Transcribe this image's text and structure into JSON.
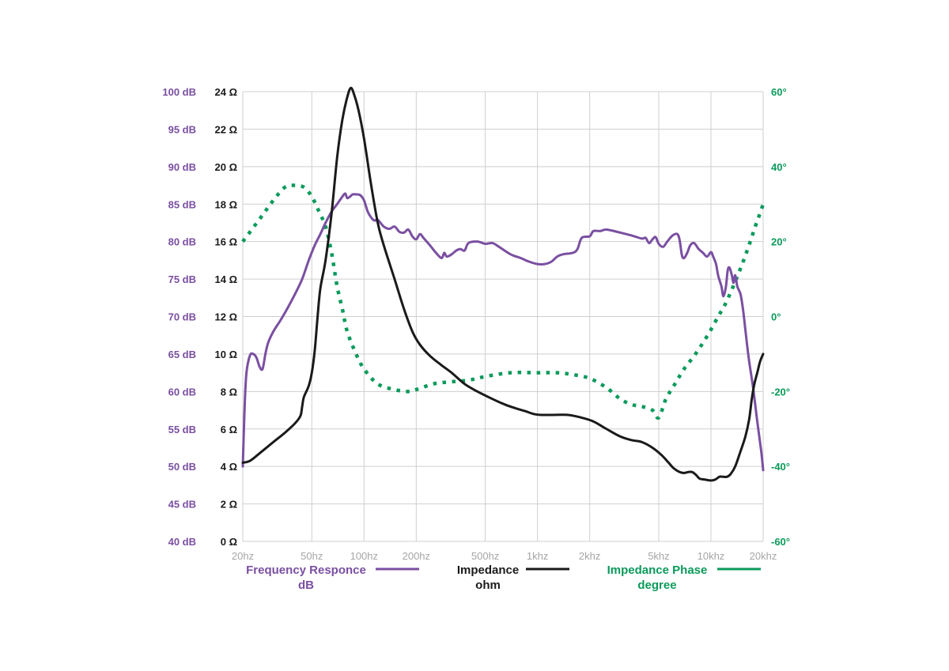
{
  "colors": {
    "frequency": "#7a4fa1",
    "impedance": "#1a1a1a",
    "phase": "#0a9a5a",
    "grid": "#cfcfcf",
    "xtick": "#a6a6a6"
  },
  "axes": {
    "db_ticks": [
      "40 dB",
      "45 dB",
      "50 dB",
      "55 dB",
      "60 dB",
      "65 dB",
      "70 dB",
      "75 dB",
      "80 dB",
      "85 dB",
      "90 dB",
      "95 dB",
      "100 dB"
    ],
    "ohm_ticks": [
      "0 Ω",
      "2 Ω",
      "4 Ω",
      "6 Ω",
      "8 Ω",
      "10 Ω",
      "12 Ω",
      "14 Ω",
      "16 Ω",
      "18 Ω",
      "20 Ω",
      "22 Ω",
      "24 Ω"
    ],
    "phase_ticks": [
      "-60°",
      "-40°",
      "-20°",
      "0°",
      "20°",
      "40°",
      "60°"
    ],
    "x_ticks": [
      "20hz",
      "50hz",
      "100hz",
      "200hz",
      "500hz",
      "1khz",
      "2khz",
      "5khz",
      "10khz",
      "20khz"
    ]
  },
  "legend": {
    "frequency_line1": "Frequency Responce",
    "frequency_line2": "dB",
    "impedance_line1": "Impedance",
    "impedance_line2": "ohm",
    "phase_line1": "Impedance Phase",
    "phase_line2": "degree"
  },
  "chart_data": {
    "type": "line",
    "x_scale": "log",
    "xlim": [
      20,
      20000
    ],
    "ylim_db": [
      40,
      100
    ],
    "ylim_ohm": [
      0,
      24
    ],
    "ylim_phase": [
      -60,
      60
    ],
    "grid": true,
    "legend_position": "bottom",
    "series": [
      {
        "name": "Frequency Responce",
        "axis": "db",
        "style": "solid",
        "points": [
          [
            20,
            50
          ],
          [
            20.5,
            58
          ],
          [
            21,
            62.5
          ],
          [
            22,
            64.8
          ],
          [
            23,
            65
          ],
          [
            24,
            64.5
          ],
          [
            25,
            63.3
          ],
          [
            26,
            63
          ],
          [
            27,
            65
          ],
          [
            28,
            66.5
          ],
          [
            30,
            68
          ],
          [
            33,
            69.5
          ],
          [
            36,
            71
          ],
          [
            40,
            73
          ],
          [
            44,
            75
          ],
          [
            48,
            77.5
          ],
          [
            52,
            79.5
          ],
          [
            56,
            81
          ],
          [
            60,
            82.5
          ],
          [
            65,
            84
          ],
          [
            70,
            85
          ],
          [
            75,
            86
          ],
          [
            78,
            86.4
          ],
          [
            80,
            85.8
          ],
          [
            83,
            86
          ],
          [
            86,
            86.3
          ],
          [
            90,
            86.3
          ],
          [
            95,
            86.2
          ],
          [
            100,
            85.5
          ],
          [
            105,
            84
          ],
          [
            110,
            83.2
          ],
          [
            115,
            82.8
          ],
          [
            120,
            82.9
          ],
          [
            130,
            82
          ],
          [
            140,
            81.7
          ],
          [
            150,
            82
          ],
          [
            160,
            81.3
          ],
          [
            170,
            81.2
          ],
          [
            180,
            81.6
          ],
          [
            190,
            80.7
          ],
          [
            200,
            80.3
          ],
          [
            210,
            81
          ],
          [
            220,
            80.5
          ],
          [
            240,
            79.5
          ],
          [
            260,
            78.5
          ],
          [
            280,
            77.8
          ],
          [
            290,
            78.5
          ],
          [
            300,
            78
          ],
          [
            320,
            78.3
          ],
          [
            340,
            78.8
          ],
          [
            360,
            79
          ],
          [
            380,
            78.8
          ],
          [
            400,
            79.8
          ],
          [
            450,
            80
          ],
          [
            500,
            79.7
          ],
          [
            550,
            79.8
          ],
          [
            600,
            79.3
          ],
          [
            700,
            78.3
          ],
          [
            800,
            77.8
          ],
          [
            900,
            77.3
          ],
          [
            1000,
            77
          ],
          [
            1100,
            77
          ],
          [
            1200,
            77.3
          ],
          [
            1300,
            78
          ],
          [
            1400,
            78.3
          ],
          [
            1600,
            78.5
          ],
          [
            1700,
            79
          ],
          [
            1800,
            80.5
          ],
          [
            2000,
            80.7
          ],
          [
            2100,
            81.4
          ],
          [
            2300,
            81.4
          ],
          [
            2500,
            81.6
          ],
          [
            3000,
            81.2
          ],
          [
            3500,
            80.8
          ],
          [
            4000,
            80.4
          ],
          [
            4200,
            80.5
          ],
          [
            4400,
            79.8
          ],
          [
            4600,
            80.3
          ],
          [
            4800,
            80.6
          ],
          [
            5000,
            79.7
          ],
          [
            5300,
            79.3
          ],
          [
            5600,
            80
          ],
          [
            6000,
            80.8
          ],
          [
            6400,
            81
          ],
          [
            6600,
            80.2
          ],
          [
            6800,
            78.2
          ],
          [
            7000,
            77.8
          ],
          [
            7300,
            78.5
          ],
          [
            7600,
            79.5
          ],
          [
            8000,
            79.8
          ],
          [
            8500,
            79
          ],
          [
            9000,
            78.5
          ],
          [
            9500,
            78
          ],
          [
            10000,
            78.6
          ],
          [
            10300,
            78
          ],
          [
            10700,
            77
          ],
          [
            11000,
            75.5
          ],
          [
            11500,
            74
          ],
          [
            11800,
            72.7
          ],
          [
            12200,
            74
          ],
          [
            12500,
            76.2
          ],
          [
            12800,
            76.5
          ],
          [
            13200,
            75.5
          ],
          [
            13500,
            74.5
          ],
          [
            13800,
            75.5
          ],
          [
            14200,
            74
          ],
          [
            14800,
            73
          ],
          [
            15300,
            71
          ],
          [
            15800,
            68.2
          ],
          [
            16500,
            64.5
          ],
          [
            17500,
            60.5
          ],
          [
            18500,
            56
          ],
          [
            19500,
            52
          ],
          [
            20000,
            49.5
          ]
        ]
      },
      {
        "name": "Impedance",
        "axis": "ohm",
        "style": "solid",
        "points": [
          [
            20,
            4.2
          ],
          [
            22,
            4.3
          ],
          [
            25,
            4.7
          ],
          [
            30,
            5.3
          ],
          [
            35,
            5.8
          ],
          [
            40,
            6.3
          ],
          [
            43,
            6.7
          ],
          [
            44,
            7.2
          ],
          [
            45,
            7.7
          ],
          [
            48,
            8.3
          ],
          [
            50,
            9
          ],
          [
            52,
            10.2
          ],
          [
            54,
            12
          ],
          [
            56,
            13.5
          ],
          [
            60,
            15
          ],
          [
            65,
            17.5
          ],
          [
            70,
            20.5
          ],
          [
            75,
            22.5
          ],
          [
            80,
            23.7
          ],
          [
            84,
            24.2
          ],
          [
            88,
            23.8
          ],
          [
            93,
            23
          ],
          [
            100,
            21.5
          ],
          [
            110,
            19
          ],
          [
            120,
            17
          ],
          [
            130,
            15.8
          ],
          [
            150,
            14
          ],
          [
            170,
            12.4
          ],
          [
            190,
            11.2
          ],
          [
            210,
            10.5
          ],
          [
            240,
            9.9
          ],
          [
            280,
            9.4
          ],
          [
            320,
            9
          ],
          [
            380,
            8.4
          ],
          [
            450,
            8
          ],
          [
            550,
            7.6
          ],
          [
            650,
            7.3
          ],
          [
            750,
            7.1
          ],
          [
            850,
            6.95
          ],
          [
            950,
            6.8
          ],
          [
            1050,
            6.75
          ],
          [
            1200,
            6.75
          ],
          [
            1500,
            6.75
          ],
          [
            1800,
            6.6
          ],
          [
            2100,
            6.4
          ],
          [
            2500,
            6
          ],
          [
            3000,
            5.6
          ],
          [
            3500,
            5.4
          ],
          [
            4000,
            5.3
          ],
          [
            4600,
            5
          ],
          [
            5200,
            4.6
          ],
          [
            5700,
            4.2
          ],
          [
            6100,
            3.9
          ],
          [
            6600,
            3.7
          ],
          [
            7000,
            3.65
          ],
          [
            7400,
            3.7
          ],
          [
            7800,
            3.7
          ],
          [
            8200,
            3.55
          ],
          [
            8600,
            3.35
          ],
          [
            9200,
            3.3
          ],
          [
            10000,
            3.25
          ],
          [
            10600,
            3.3
          ],
          [
            11200,
            3.45
          ],
          [
            11800,
            3.45
          ],
          [
            12400,
            3.45
          ],
          [
            13000,
            3.6
          ],
          [
            13800,
            4
          ],
          [
            14800,
            4.8
          ],
          [
            15800,
            5.6
          ],
          [
            16600,
            6.5
          ],
          [
            17200,
            7.6
          ],
          [
            17800,
            8.4
          ],
          [
            18500,
            9
          ],
          [
            19200,
            9.6
          ],
          [
            20000,
            10
          ]
        ]
      },
      {
        "name": "Impedance Phase",
        "axis": "phase",
        "style": "dotted",
        "points": [
          [
            20,
            20
          ],
          [
            25,
            26
          ],
          [
            30,
            31
          ],
          [
            35,
            34.5
          ],
          [
            40,
            35
          ],
          [
            45,
            34.5
          ],
          [
            50,
            32
          ],
          [
            55,
            28
          ],
          [
            60,
            24
          ],
          [
            65,
            17
          ],
          [
            70,
            8
          ],
          [
            75,
            2
          ],
          [
            80,
            -4
          ],
          [
            90,
            -10
          ],
          [
            100,
            -14
          ],
          [
            120,
            -18
          ],
          [
            150,
            -19.5
          ],
          [
            180,
            -20
          ],
          [
            200,
            -19.5
          ],
          [
            250,
            -18
          ],
          [
            300,
            -17.5
          ],
          [
            400,
            -17
          ],
          [
            500,
            -16
          ],
          [
            700,
            -15
          ],
          [
            1000,
            -15
          ],
          [
            1300,
            -15
          ],
          [
            1600,
            -15.5
          ],
          [
            2000,
            -16.5
          ],
          [
            2500,
            -19
          ],
          [
            3000,
            -22
          ],
          [
            3500,
            -23.5
          ],
          [
            4000,
            -24
          ],
          [
            4600,
            -25
          ],
          [
            5000,
            -27
          ],
          [
            5500,
            -22
          ],
          [
            6200,
            -18
          ],
          [
            7000,
            -14
          ],
          [
            8000,
            -10.5
          ],
          [
            9000,
            -7
          ],
          [
            10000,
            -3.5
          ],
          [
            11000,
            0
          ],
          [
            12000,
            3
          ],
          [
            13000,
            6.5
          ],
          [
            14000,
            10
          ],
          [
            15000,
            13.5
          ],
          [
            16000,
            17
          ],
          [
            17000,
            20.5
          ],
          [
            18000,
            24
          ],
          [
            19000,
            27
          ],
          [
            20000,
            30
          ]
        ]
      }
    ]
  }
}
